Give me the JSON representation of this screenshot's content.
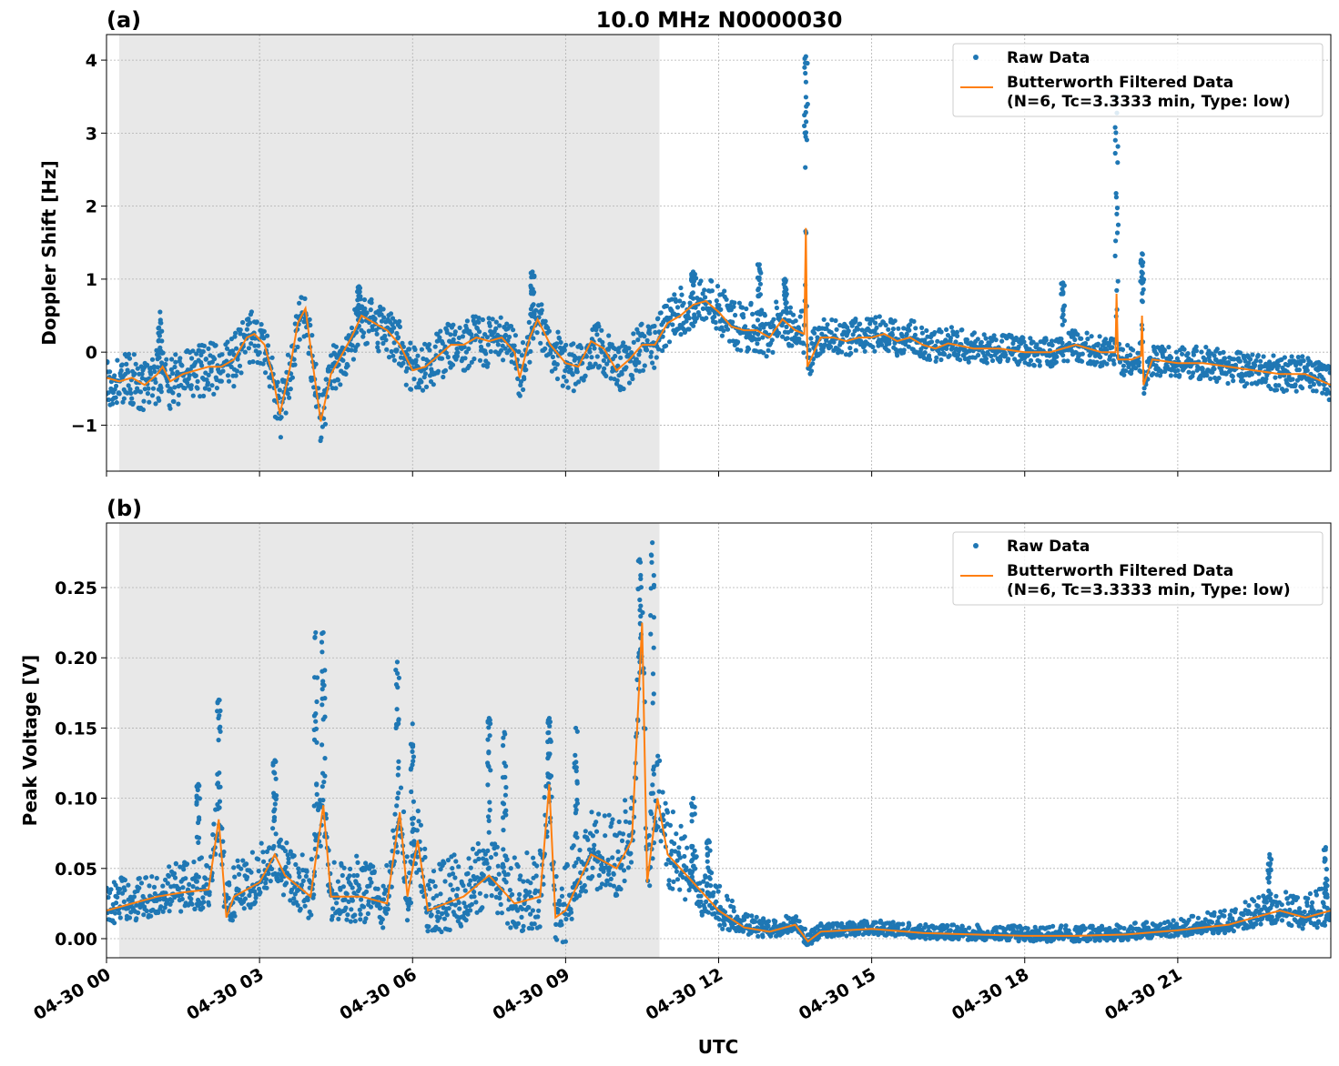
{
  "chart_data": [
    {
      "type": "scatter+line",
      "panel_label": "(a)",
      "title": "10.0 MHz N0000030",
      "xlabel": "",
      "ylabel": "Doppler Shift [Hz]",
      "xlim_hours": [
        0,
        24
      ],
      "ylim": [
        -1.63,
        4.35
      ],
      "yticks": [
        -1,
        0,
        1,
        2,
        3,
        4
      ],
      "ytick_labels": [
        "−1",
        "0",
        "1",
        "2",
        "3",
        "4"
      ],
      "grid": true,
      "shaded_interval_hours": [
        0.25,
        10.84
      ],
      "legend": {
        "position": "top-right",
        "entries": [
          "Raw Data",
          "Butterworth Filtered Data",
          "(N=6, Tc=3.3333 min, Type: low)"
        ]
      },
      "filtered": [
        [
          0,
          -0.35
        ],
        [
          0.25,
          -0.4
        ],
        [
          0.5,
          -0.35
        ],
        [
          0.75,
          -0.45
        ],
        [
          1,
          -0.3
        ],
        [
          1.1,
          -0.2
        ],
        [
          1.25,
          -0.4
        ],
        [
          1.5,
          -0.3
        ],
        [
          1.75,
          -0.25
        ],
        [
          2,
          -0.2
        ],
        [
          2.25,
          -0.2
        ],
        [
          2.5,
          -0.1
        ],
        [
          2.75,
          0.2
        ],
        [
          2.9,
          0.25
        ],
        [
          3.1,
          0.1
        ],
        [
          3.25,
          -0.3
        ],
        [
          3.4,
          -0.85
        ],
        [
          3.6,
          -0.2
        ],
        [
          3.75,
          0.4
        ],
        [
          3.9,
          0.6
        ],
        [
          4.05,
          -0.2
        ],
        [
          4.2,
          -0.95
        ],
        [
          4.4,
          -0.3
        ],
        [
          4.6,
          -0.05
        ],
        [
          4.8,
          0.2
        ],
        [
          5,
          0.5
        ],
        [
          5.25,
          0.4
        ],
        [
          5.5,
          0.3
        ],
        [
          5.75,
          0.1
        ],
        [
          6,
          -0.25
        ],
        [
          6.25,
          -0.2
        ],
        [
          6.5,
          -0.05
        ],
        [
          6.75,
          0.1
        ],
        [
          7,
          0.1
        ],
        [
          7.25,
          0.2
        ],
        [
          7.5,
          0.15
        ],
        [
          7.75,
          0.2
        ],
        [
          8,
          0.0
        ],
        [
          8.1,
          -0.35
        ],
        [
          8.3,
          0.2
        ],
        [
          8.45,
          0.45
        ],
        [
          8.7,
          0.1
        ],
        [
          9,
          -0.15
        ],
        [
          9.25,
          -0.2
        ],
        [
          9.5,
          0.15
        ],
        [
          9.75,
          0.05
        ],
        [
          10,
          -0.25
        ],
        [
          10.25,
          -0.1
        ],
        [
          10.5,
          0.1
        ],
        [
          10.75,
          0.1
        ],
        [
          11,
          0.4
        ],
        [
          11.25,
          0.5
        ],
        [
          11.5,
          0.65
        ],
        [
          11.75,
          0.7
        ],
        [
          12,
          0.55
        ],
        [
          12.25,
          0.35
        ],
        [
          12.5,
          0.3
        ],
        [
          12.75,
          0.3
        ],
        [
          13,
          0.2
        ],
        [
          13.25,
          0.45
        ],
        [
          13.5,
          0.3
        ],
        [
          13.68,
          0.25
        ],
        [
          13.71,
          1.7
        ],
        [
          13.74,
          -0.2
        ],
        [
          14,
          0.2
        ],
        [
          14.25,
          0.2
        ],
        [
          14.5,
          0.15
        ],
        [
          14.75,
          0.2
        ],
        [
          15,
          0.2
        ],
        [
          15.25,
          0.25
        ],
        [
          15.5,
          0.15
        ],
        [
          15.75,
          0.2
        ],
        [
          16,
          0.1
        ],
        [
          16.25,
          0.05
        ],
        [
          16.5,
          0.12
        ],
        [
          17,
          0.05
        ],
        [
          17.5,
          0.05
        ],
        [
          18,
          0.0
        ],
        [
          18.5,
          0.0
        ],
        [
          19,
          0.1
        ],
        [
          19.5,
          0.0
        ],
        [
          19.78,
          0.0
        ],
        [
          19.8,
          0.8
        ],
        [
          19.83,
          -0.1
        ],
        [
          20.1,
          -0.1
        ],
        [
          20.28,
          -0.05
        ],
        [
          20.3,
          0.5
        ],
        [
          20.33,
          -0.45
        ],
        [
          20.5,
          -0.1
        ],
        [
          21,
          -0.15
        ],
        [
          21.5,
          -0.15
        ],
        [
          22,
          -0.2
        ],
        [
          22.5,
          -0.25
        ],
        [
          23,
          -0.3
        ],
        [
          23.5,
          -0.3
        ],
        [
          24,
          -0.45
        ]
      ],
      "raw_band_offsets": [
        [
          0,
          0.4,
          0.35
        ],
        [
          10.8,
          0.35,
          0.3
        ],
        [
          11,
          0.3,
          0.4
        ],
        [
          13.7,
          0.3,
          0.35
        ],
        [
          14,
          0.2,
          0.3
        ],
        [
          18,
          0.2,
          0.2
        ],
        [
          24,
          0.25,
          0.25
        ]
      ],
      "raw_spikes": [
        [
          1.05,
          0.55
        ],
        [
          4.95,
          0.9
        ],
        [
          8.35,
          1.1
        ],
        [
          11.5,
          1.1
        ],
        [
          12.8,
          1.2
        ],
        [
          13.3,
          1.0
        ],
        [
          13.71,
          4.05
        ],
        [
          18.75,
          0.95
        ],
        [
          19.8,
          3.5
        ],
        [
          20.3,
          1.35
        ]
      ]
    },
    {
      "type": "scatter+line",
      "panel_label": "(b)",
      "title": "",
      "xlabel": "UTC",
      "ylabel": "Peak Voltage [V]",
      "xlim_hours": [
        0,
        24
      ],
      "ylim": [
        -0.0136,
        0.296
      ],
      "yticks": [
        0,
        0.05,
        0.1,
        0.15,
        0.2,
        0.25
      ],
      "ytick_labels": [
        "0.00",
        "0.05",
        "0.10",
        "0.15",
        "0.20",
        "0.25"
      ],
      "xticks_hours": [
        0,
        3,
        6,
        9,
        12,
        15,
        18,
        21
      ],
      "xtick_labels": [
        "04-30 00",
        "04-30 03",
        "04-30 06",
        "04-30 09",
        "04-30 12",
        "04-30 15",
        "04-30 18",
        "04-30 21"
      ],
      "grid": true,
      "shaded_interval_hours": [
        0.25,
        10.84
      ],
      "legend": {
        "position": "top-right",
        "entries": [
          "Raw Data",
          "Butterworth Filtered Data",
          "(N=6, Tc=3.3333 min, Type: low)"
        ]
      },
      "filtered": [
        [
          0,
          0.02
        ],
        [
          0.5,
          0.025
        ],
        [
          1,
          0.03
        ],
        [
          1.5,
          0.033
        ],
        [
          2,
          0.035
        ],
        [
          2.2,
          0.085
        ],
        [
          2.35,
          0.015
        ],
        [
          2.5,
          0.03
        ],
        [
          3,
          0.04
        ],
        [
          3.3,
          0.06
        ],
        [
          3.5,
          0.045
        ],
        [
          4,
          0.03
        ],
        [
          4.25,
          0.095
        ],
        [
          4.4,
          0.03
        ],
        [
          5,
          0.03
        ],
        [
          5.5,
          0.025
        ],
        [
          5.75,
          0.09
        ],
        [
          5.9,
          0.03
        ],
        [
          6.1,
          0.07
        ],
        [
          6.3,
          0.02
        ],
        [
          7,
          0.03
        ],
        [
          7.5,
          0.045
        ],
        [
          8,
          0.025
        ],
        [
          8.5,
          0.03
        ],
        [
          8.68,
          0.11
        ],
        [
          8.8,
          0.015
        ],
        [
          9,
          0.02
        ],
        [
          9.5,
          0.06
        ],
        [
          10,
          0.05
        ],
        [
          10.3,
          0.07
        ],
        [
          10.5,
          0.225
        ],
        [
          10.6,
          0.04
        ],
        [
          10.8,
          0.1
        ],
        [
          11,
          0.06
        ],
        [
          11.5,
          0.04
        ],
        [
          12,
          0.02
        ],
        [
          12.5,
          0.008
        ],
        [
          13,
          0.005
        ],
        [
          13.5,
          0.01
        ],
        [
          13.75,
          -0.002
        ],
        [
          14,
          0.005
        ],
        [
          15,
          0.007
        ],
        [
          16,
          0.004
        ],
        [
          17,
          0.003
        ],
        [
          18,
          0.002
        ],
        [
          19,
          0.002
        ],
        [
          20,
          0.003
        ],
        [
          21,
          0.006
        ],
        [
          22,
          0.01
        ],
        [
          22.5,
          0.015
        ],
        [
          23,
          0.02
        ],
        [
          23.5,
          0.015
        ],
        [
          24,
          0.02
        ]
      ],
      "raw_band_offsets": [
        [
          0,
          0.012,
          0.02
        ],
        [
          10.8,
          0.025,
          0.04
        ],
        [
          11.5,
          0.02,
          0.03
        ],
        [
          12.5,
          0.005,
          0.01
        ],
        [
          14,
          0.004,
          0.006
        ],
        [
          21,
          0.004,
          0.008
        ],
        [
          24,
          0.01,
          0.02
        ]
      ],
      "raw_spikes": [
        [
          1.8,
          0.11
        ],
        [
          2.2,
          0.17
        ],
        [
          3.3,
          0.127
        ],
        [
          4.1,
          0.218
        ],
        [
          4.25,
          0.218
        ],
        [
          5.7,
          0.197
        ],
        [
          6,
          0.153
        ],
        [
          7.5,
          0.157
        ],
        [
          7.8,
          0.147
        ],
        [
          8.68,
          0.157
        ],
        [
          9.2,
          0.15
        ],
        [
          10.45,
          0.27
        ],
        [
          10.7,
          0.282
        ],
        [
          11.5,
          0.1
        ],
        [
          11.8,
          0.07
        ],
        [
          22.8,
          0.06
        ],
        [
          23.9,
          0.065
        ]
      ]
    }
  ],
  "colors": {
    "raw": "#1f77b4",
    "filtered": "#ff7f0e",
    "shade": "#e8e8e8"
  }
}
